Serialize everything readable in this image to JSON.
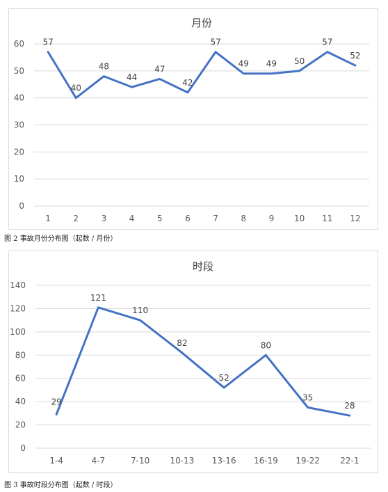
{
  "captions": {
    "fig2": "图 2 事故月份分布图（起数 / 月份）",
    "fig3": "图 3 事故时段分布图（起数 / 时段）"
  },
  "colors": {
    "line": "#4472c4",
    "grid": "#d9d9d9"
  },
  "chart_data": [
    {
      "type": "line",
      "title": "月份",
      "categories": [
        "1",
        "2",
        "3",
        "4",
        "5",
        "6",
        "7",
        "8",
        "9",
        "10",
        "11",
        "12"
      ],
      "values": [
        57,
        40,
        48,
        44,
        47,
        42,
        57,
        49,
        49,
        50,
        57,
        52
      ],
      "ylim": [
        0,
        60
      ],
      "yticks": [
        0,
        10,
        20,
        30,
        40,
        50,
        60
      ],
      "grid": true,
      "legend": "none"
    },
    {
      "type": "line",
      "title": "时段",
      "categories": [
        "1-4",
        "4-7",
        "7-10",
        "10-13",
        "13-16",
        "16-19",
        "19-22",
        "22-1"
      ],
      "values": [
        29,
        121,
        110,
        82,
        52,
        80,
        35,
        28
      ],
      "ylim": [
        0,
        140
      ],
      "yticks": [
        0,
        20,
        40,
        60,
        80,
        100,
        120,
        140
      ],
      "grid": true,
      "legend": "none"
    }
  ]
}
